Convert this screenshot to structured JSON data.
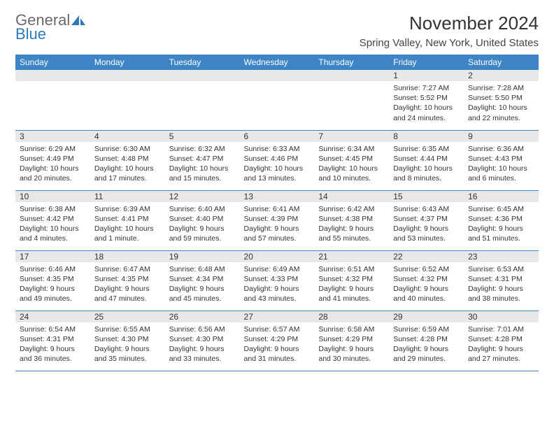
{
  "brand": {
    "word1": "General",
    "word2": "Blue",
    "word1_color": "#6a6a6a",
    "word2_color": "#2f7ab8",
    "sail_color": "#2f7ab8"
  },
  "title": "November 2024",
  "location": "Spring Valley, New York, United States",
  "header_bg": "#3d85c6",
  "header_fg": "#ffffff",
  "daynum_bg": "#e8e8e8",
  "rule_color": "#3d85c6",
  "weekdays": [
    "Sunday",
    "Monday",
    "Tuesday",
    "Wednesday",
    "Thursday",
    "Friday",
    "Saturday"
  ],
  "label_sunrise": "Sunrise:",
  "label_sunset": "Sunset:",
  "label_daylight": "Daylight:",
  "weeks": [
    [
      null,
      null,
      null,
      null,
      null,
      {
        "n": "1",
        "sunrise": "7:27 AM",
        "sunset": "5:52 PM",
        "daylight": "10 hours and 24 minutes."
      },
      {
        "n": "2",
        "sunrise": "7:28 AM",
        "sunset": "5:50 PM",
        "daylight": "10 hours and 22 minutes."
      }
    ],
    [
      {
        "n": "3",
        "sunrise": "6:29 AM",
        "sunset": "4:49 PM",
        "daylight": "10 hours and 20 minutes."
      },
      {
        "n": "4",
        "sunrise": "6:30 AM",
        "sunset": "4:48 PM",
        "daylight": "10 hours and 17 minutes."
      },
      {
        "n": "5",
        "sunrise": "6:32 AM",
        "sunset": "4:47 PM",
        "daylight": "10 hours and 15 minutes."
      },
      {
        "n": "6",
        "sunrise": "6:33 AM",
        "sunset": "4:46 PM",
        "daylight": "10 hours and 13 minutes."
      },
      {
        "n": "7",
        "sunrise": "6:34 AM",
        "sunset": "4:45 PM",
        "daylight": "10 hours and 10 minutes."
      },
      {
        "n": "8",
        "sunrise": "6:35 AM",
        "sunset": "4:44 PM",
        "daylight": "10 hours and 8 minutes."
      },
      {
        "n": "9",
        "sunrise": "6:36 AM",
        "sunset": "4:43 PM",
        "daylight": "10 hours and 6 minutes."
      }
    ],
    [
      {
        "n": "10",
        "sunrise": "6:38 AM",
        "sunset": "4:42 PM",
        "daylight": "10 hours and 4 minutes."
      },
      {
        "n": "11",
        "sunrise": "6:39 AM",
        "sunset": "4:41 PM",
        "daylight": "10 hours and 1 minute."
      },
      {
        "n": "12",
        "sunrise": "6:40 AM",
        "sunset": "4:40 PM",
        "daylight": "9 hours and 59 minutes."
      },
      {
        "n": "13",
        "sunrise": "6:41 AM",
        "sunset": "4:39 PM",
        "daylight": "9 hours and 57 minutes."
      },
      {
        "n": "14",
        "sunrise": "6:42 AM",
        "sunset": "4:38 PM",
        "daylight": "9 hours and 55 minutes."
      },
      {
        "n": "15",
        "sunrise": "6:43 AM",
        "sunset": "4:37 PM",
        "daylight": "9 hours and 53 minutes."
      },
      {
        "n": "16",
        "sunrise": "6:45 AM",
        "sunset": "4:36 PM",
        "daylight": "9 hours and 51 minutes."
      }
    ],
    [
      {
        "n": "17",
        "sunrise": "6:46 AM",
        "sunset": "4:35 PM",
        "daylight": "9 hours and 49 minutes."
      },
      {
        "n": "18",
        "sunrise": "6:47 AM",
        "sunset": "4:35 PM",
        "daylight": "9 hours and 47 minutes."
      },
      {
        "n": "19",
        "sunrise": "6:48 AM",
        "sunset": "4:34 PM",
        "daylight": "9 hours and 45 minutes."
      },
      {
        "n": "20",
        "sunrise": "6:49 AM",
        "sunset": "4:33 PM",
        "daylight": "9 hours and 43 minutes."
      },
      {
        "n": "21",
        "sunrise": "6:51 AM",
        "sunset": "4:32 PM",
        "daylight": "9 hours and 41 minutes."
      },
      {
        "n": "22",
        "sunrise": "6:52 AM",
        "sunset": "4:32 PM",
        "daylight": "9 hours and 40 minutes."
      },
      {
        "n": "23",
        "sunrise": "6:53 AM",
        "sunset": "4:31 PM",
        "daylight": "9 hours and 38 minutes."
      }
    ],
    [
      {
        "n": "24",
        "sunrise": "6:54 AM",
        "sunset": "4:31 PM",
        "daylight": "9 hours and 36 minutes."
      },
      {
        "n": "25",
        "sunrise": "6:55 AM",
        "sunset": "4:30 PM",
        "daylight": "9 hours and 35 minutes."
      },
      {
        "n": "26",
        "sunrise": "6:56 AM",
        "sunset": "4:30 PM",
        "daylight": "9 hours and 33 minutes."
      },
      {
        "n": "27",
        "sunrise": "6:57 AM",
        "sunset": "4:29 PM",
        "daylight": "9 hours and 31 minutes."
      },
      {
        "n": "28",
        "sunrise": "6:58 AM",
        "sunset": "4:29 PM",
        "daylight": "9 hours and 30 minutes."
      },
      {
        "n": "29",
        "sunrise": "6:59 AM",
        "sunset": "4:28 PM",
        "daylight": "9 hours and 29 minutes."
      },
      {
        "n": "30",
        "sunrise": "7:01 AM",
        "sunset": "4:28 PM",
        "daylight": "9 hours and 27 minutes."
      }
    ]
  ]
}
